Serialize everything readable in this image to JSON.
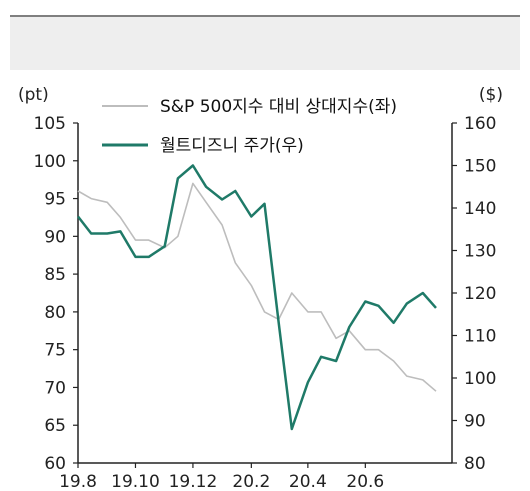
{
  "chart_data": {
    "type": "line",
    "title": "",
    "legend_placement": "top-left",
    "y_left": {
      "unit": "(pt)",
      "range": [
        60,
        105
      ],
      "ticks": [
        "105",
        "100",
        "95",
        "90",
        "85",
        "80",
        "75",
        "70",
        "65",
        "60"
      ]
    },
    "y_right": {
      "unit": "($)",
      "range": [
        80,
        160
      ],
      "ticks": [
        "160",
        "150",
        "140",
        "130",
        "120",
        "110",
        "100",
        "90",
        "80"
      ]
    },
    "x": {
      "range": [
        "2019-08-01",
        "2020-09-01"
      ],
      "ticks": [
        "19.8",
        "19.10",
        "19.12",
        "20.2",
        "20.4",
        "20.6"
      ]
    },
    "grid": false,
    "series": [
      {
        "name": "S&P 500지수 대비 상대지수(좌)",
        "axis": "left",
        "color": "#bdbdbd",
        "points": [
          [
            "2019-08-01",
            96.0
          ],
          [
            "2019-08-15",
            95.0
          ],
          [
            "2019-09-01",
            94.5
          ],
          [
            "2019-09-15",
            92.5
          ],
          [
            "2019-10-01",
            89.5
          ],
          [
            "2019-10-15",
            89.5
          ],
          [
            "2019-11-01",
            88.5
          ],
          [
            "2019-11-15",
            90.0
          ],
          [
            "2019-12-01",
            97.0
          ],
          [
            "2019-12-15",
            94.5
          ],
          [
            "2020-01-01",
            91.5
          ],
          [
            "2020-01-15",
            86.5
          ],
          [
            "2020-02-01",
            83.5
          ],
          [
            "2020-02-15",
            80.0
          ],
          [
            "2020-03-01",
            79.0
          ],
          [
            "2020-03-15",
            82.5
          ],
          [
            "2020-04-01",
            80.0
          ],
          [
            "2020-04-15",
            80.0
          ],
          [
            "2020-05-01",
            76.5
          ],
          [
            "2020-05-15",
            77.5
          ],
          [
            "2020-06-01",
            75.0
          ],
          [
            "2020-06-15",
            75.0
          ],
          [
            "2020-07-01",
            73.5
          ],
          [
            "2020-07-15",
            71.5
          ],
          [
            "2020-08-01",
            71.0
          ],
          [
            "2020-08-15",
            69.5
          ]
        ]
      },
      {
        "name": "월트디즈니 주가(우)",
        "axis": "right",
        "color": "#1f7a68",
        "points": [
          [
            "2019-08-01",
            138.0
          ],
          [
            "2019-08-15",
            134.0
          ],
          [
            "2019-09-01",
            134.0
          ],
          [
            "2019-09-15",
            134.5
          ],
          [
            "2019-10-01",
            128.5
          ],
          [
            "2019-10-15",
            128.5
          ],
          [
            "2019-11-01",
            131.0
          ],
          [
            "2019-11-15",
            147.0
          ],
          [
            "2019-12-01",
            150.0
          ],
          [
            "2019-12-15",
            145.0
          ],
          [
            "2020-01-01",
            142.0
          ],
          [
            "2020-01-15",
            144.0
          ],
          [
            "2020-02-01",
            138.0
          ],
          [
            "2020-02-15",
            141.0
          ],
          [
            "2020-03-01",
            113.0
          ],
          [
            "2020-03-15",
            88.0
          ],
          [
            "2020-04-01",
            99.0
          ],
          [
            "2020-04-15",
            105.0
          ],
          [
            "2020-05-01",
            104.0
          ],
          [
            "2020-05-15",
            112.0
          ],
          [
            "2020-06-01",
            118.0
          ],
          [
            "2020-06-15",
            117.0
          ],
          [
            "2020-07-01",
            113.0
          ],
          [
            "2020-07-15",
            117.5
          ],
          [
            "2020-08-01",
            120.0
          ],
          [
            "2020-08-15",
            116.5
          ]
        ]
      }
    ]
  }
}
